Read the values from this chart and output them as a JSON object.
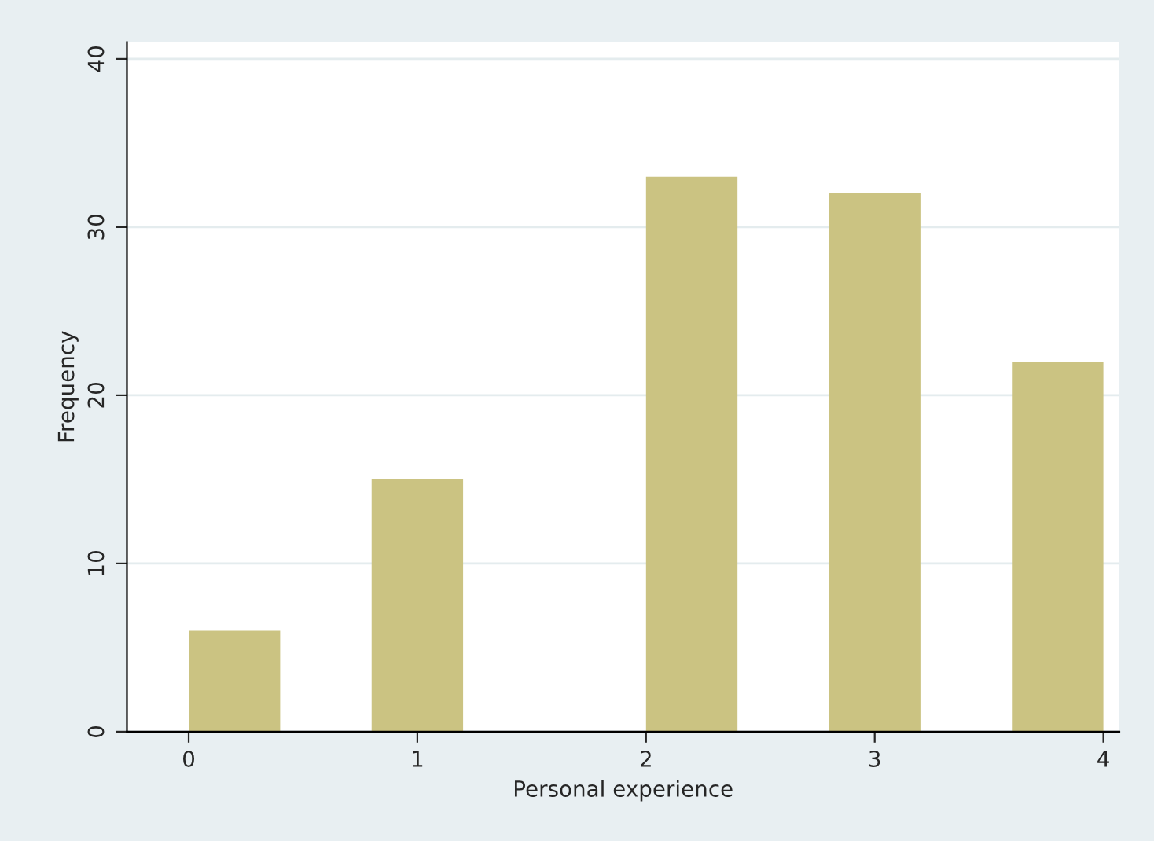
{
  "chart_data": {
    "type": "histogram",
    "xlabel": "Personal experience",
    "ylabel": "Frequency",
    "bins": [
      0,
      0.4,
      0.8,
      1.2,
      1.6,
      2.0,
      2.4,
      2.8,
      3.2,
      3.6,
      4.0
    ],
    "values": [
      6,
      0,
      15,
      0,
      0,
      33,
      0,
      32,
      0,
      22
    ],
    "color": "#cbc382",
    "xlim": [
      -0.27,
      4.07
    ],
    "xticks": [
      0,
      1,
      2,
      3,
      4
    ],
    "ylim": [
      0,
      41
    ],
    "yticks": [
      0,
      10,
      20,
      30,
      40
    ],
    "grid": "y"
  }
}
